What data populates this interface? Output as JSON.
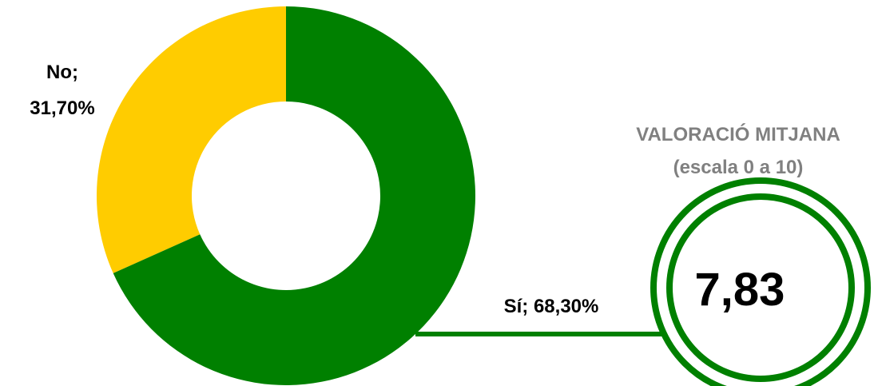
{
  "chart_data": {
    "type": "donut",
    "categories": [
      "Sí",
      "No"
    ],
    "values": [
      68.3,
      31.7
    ],
    "value_labels": [
      "Sí; 68,30%",
      "No; 31,70%"
    ],
    "colors": [
      "#008000",
      "#ffcc00"
    ],
    "annotation": {
      "title": "VALORACIÓ MITJANA",
      "subtitle": "(escala 0 a 10)",
      "value": "7,83"
    }
  }
}
